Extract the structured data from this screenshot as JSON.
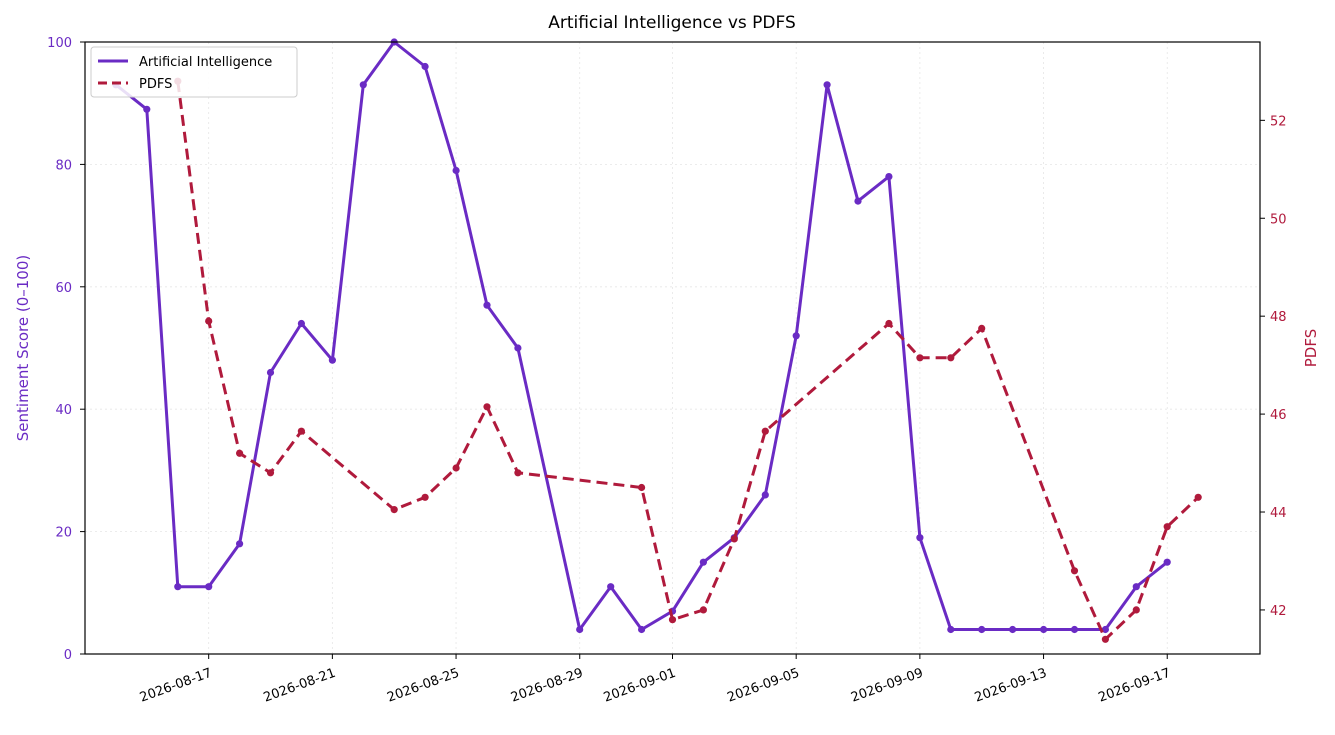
{
  "chart_data": {
    "type": "line",
    "title": "Artificial Intelligence vs PDFS",
    "y_left_label": "Sentiment Score (0–100)",
    "y_right_label": "PDFS",
    "x_ticks": [
      "2026-08-17",
      "2026-08-21",
      "2026-08-25",
      "2026-08-29",
      "2026-09-01",
      "2026-09-05",
      "2026-09-09",
      "2026-09-13",
      "2026-09-17"
    ],
    "y_left_ticks": [
      "0",
      "20",
      "40",
      "60",
      "80",
      "100"
    ],
    "y_right_ticks": [
      "42",
      "44",
      "46",
      "48",
      "50",
      "52"
    ],
    "y_left_range": [
      0,
      100
    ],
    "y_right_range": [
      41.1,
      53.6
    ],
    "x_range": [
      "2026-08-13",
      "2026-09-20"
    ],
    "grid": true,
    "legend_position": "top-left",
    "series": [
      {
        "name": "Artificial Intelligence",
        "axis": "left",
        "color": "#6a2bc4",
        "style": "solid",
        "points": [
          [
            "2026-08-14",
            93
          ],
          [
            "2026-08-15",
            89
          ],
          [
            "2026-08-16",
            11
          ],
          [
            "2026-08-17",
            11
          ],
          [
            "2026-08-18",
            18
          ],
          [
            "2026-08-19",
            46
          ],
          [
            "2026-08-20",
            54
          ],
          [
            "2026-08-21",
            48
          ],
          [
            "2026-08-22",
            93
          ],
          [
            "2026-08-23",
            100
          ],
          [
            "2026-08-24",
            96
          ],
          [
            "2026-08-25",
            79
          ],
          [
            "2026-08-26",
            57
          ],
          [
            "2026-08-27",
            50
          ],
          [
            "2026-08-29",
            4
          ],
          [
            "2026-08-30",
            11
          ],
          [
            "2026-08-31",
            4
          ],
          [
            "2026-09-01",
            7
          ],
          [
            "2026-09-02",
            15
          ],
          [
            "2026-09-03",
            19
          ],
          [
            "2026-09-04",
            26
          ],
          [
            "2026-09-05",
            52
          ],
          [
            "2026-09-06",
            93
          ],
          [
            "2026-09-07",
            74
          ],
          [
            "2026-09-08",
            78
          ],
          [
            "2026-09-09",
            19
          ],
          [
            "2026-09-10",
            4
          ],
          [
            "2026-09-11",
            4
          ],
          [
            "2026-09-12",
            4
          ],
          [
            "2026-09-13",
            4
          ],
          [
            "2026-09-14",
            4
          ],
          [
            "2026-09-15",
            4
          ],
          [
            "2026-09-16",
            11
          ],
          [
            "2026-09-17",
            15
          ]
        ]
      },
      {
        "name": "PDFS",
        "axis": "right",
        "color": "#b01a3c",
        "style": "dashed",
        "points": [
          [
            "2026-08-16",
            52.8
          ],
          [
            "2026-08-17",
            47.9
          ],
          [
            "2026-08-18",
            45.2
          ],
          [
            "2026-08-19",
            44.8
          ],
          [
            "2026-08-20",
            45.65
          ],
          [
            "2026-08-23",
            44.05
          ],
          [
            "2026-08-24",
            44.3
          ],
          [
            "2026-08-25",
            44.9
          ],
          [
            "2026-08-26",
            46.15
          ],
          [
            "2026-08-27",
            44.8
          ],
          [
            "2026-08-31",
            44.5
          ],
          [
            "2026-09-01",
            41.8
          ],
          [
            "2026-09-02",
            42.0
          ],
          [
            "2026-09-03",
            43.45
          ],
          [
            "2026-09-04",
            45.65
          ],
          [
            "2026-09-08",
            47.85
          ],
          [
            "2026-09-09",
            47.15
          ],
          [
            "2026-09-10",
            47.15
          ],
          [
            "2026-09-11",
            47.75
          ],
          [
            "2026-09-14",
            42.8
          ],
          [
            "2026-09-15",
            41.4
          ],
          [
            "2026-09-16",
            42.0
          ],
          [
            "2026-09-17",
            43.7
          ],
          [
            "2026-09-18",
            44.3
          ]
        ]
      }
    ]
  }
}
